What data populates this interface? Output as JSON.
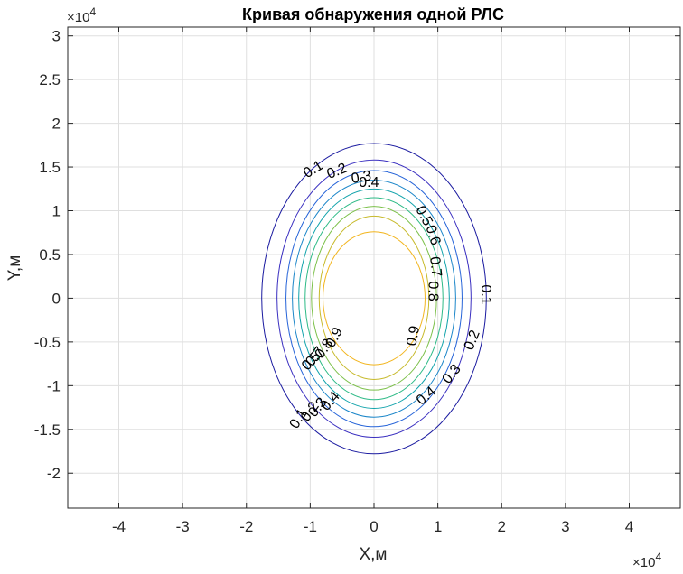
{
  "chart_data": {
    "type": "contour",
    "title": "Кривая обнаружения одной РЛС",
    "xlabel": "X,м",
    "ylabel": "Y,м",
    "x_multiplier": "×10",
    "x_multiplier_exp": "4",
    "y_multiplier": "×10",
    "y_multiplier_exp": "4",
    "xlim": [
      -4.8,
      4.8
    ],
    "ylim": [
      -2.4,
      3.1
    ],
    "x_ticks": [
      -4,
      -3,
      -2,
      -1,
      0,
      1,
      2,
      3,
      4
    ],
    "x_tick_labels": [
      "-4",
      "-3",
      "-2",
      "-1",
      "0",
      "1",
      "2",
      "3",
      "4"
    ],
    "y_ticks": [
      -2,
      -1.5,
      -1,
      -0.5,
      0,
      0.5,
      1,
      1.5,
      2,
      2.5,
      3
    ],
    "y_tick_labels": [
      "-2",
      "-1.5",
      "-1",
      "-0.5",
      "0",
      "0.5",
      "1",
      "1.5",
      "2",
      "2.5",
      "3"
    ],
    "grid": true,
    "levels": [
      {
        "level": 0.1,
        "label": "0.1",
        "color": "#1a1aa0",
        "rx": 1.76,
        "ry_top": 1.77,
        "ry_bot": 1.78
      },
      {
        "level": 0.2,
        "label": "0.2",
        "color": "#3a2fc0",
        "rx": 1.52,
        "ry_top": 1.58,
        "ry_bot": 1.59
      },
      {
        "level": 0.3,
        "label": "0.3",
        "color": "#2563d8",
        "rx": 1.38,
        "ry_top": 1.46,
        "ry_bot": 1.47
      },
      {
        "level": 0.4,
        "label": "0.4",
        "color": "#1b86c9",
        "rx": 1.28,
        "ry_top": 1.35,
        "ry_bot": 1.36
      },
      {
        "level": 0.5,
        "label": "0.5",
        "color": "#11a3ab",
        "rx": 1.18,
        "ry_top": 1.25,
        "ry_bot": 1.26
      },
      {
        "level": 0.6,
        "label": "0.6",
        "color": "#2dba86",
        "rx": 1.08,
        "ry_top": 1.15,
        "ry_bot": 1.16
      },
      {
        "level": 0.7,
        "label": "0.7",
        "color": "#7cc04a",
        "rx": 0.98,
        "ry_top": 1.05,
        "ry_bot": 1.05
      },
      {
        "level": 0.8,
        "label": "0.8",
        "color": "#c7ba2c",
        "rx": 0.86,
        "ry_top": 0.94,
        "ry_bot": 0.93
      },
      {
        "level": 0.9,
        "label": "0.9",
        "color": "#f2b51e",
        "rx": 0.8,
        "ry_top": 0.76,
        "ry_bot": 0.76
      }
    ],
    "contour_labels": [
      {
        "text": "0.1",
        "x": -0.95,
        "y": 1.47,
        "rot": -32
      },
      {
        "text": "0.2",
        "x": -0.58,
        "y": 1.45,
        "rot": -22
      },
      {
        "text": "0.3",
        "x": -0.2,
        "y": 1.38,
        "rot": -10
      },
      {
        "text": "0.4",
        "x": -0.08,
        "y": 1.32,
        "rot": 0
      },
      {
        "text": "0.5",
        "x": 0.78,
        "y": 0.94,
        "rot": 62
      },
      {
        "text": "0.6",
        "x": 0.92,
        "y": 0.72,
        "rot": 72
      },
      {
        "text": "0.7",
        "x": 0.96,
        "y": 0.36,
        "rot": 84
      },
      {
        "text": "0.8",
        "x": 0.92,
        "y": 0.08,
        "rot": 90
      },
      {
        "text": "0.9",
        "x": 0.62,
        "y": -0.43,
        "rot": -80
      },
      {
        "text": "0.1",
        "x": 1.75,
        "y": 0.04,
        "rot": 90
      },
      {
        "text": "0.2",
        "x": 1.54,
        "y": -0.48,
        "rot": -68
      },
      {
        "text": "0.3",
        "x": 1.22,
        "y": -0.87,
        "rot": -50
      },
      {
        "text": "0.4",
        "x": 0.82,
        "y": -1.12,
        "rot": -40
      },
      {
        "text": "0.9",
        "x": -0.62,
        "y": -0.45,
        "rot": -62
      },
      {
        "text": "0.8",
        "x": -0.78,
        "y": -0.58,
        "rot": -55
      },
      {
        "text": "0.7",
        "x": -0.92,
        "y": -0.67,
        "rot": -50
      },
      {
        "text": "0.5",
        "x": -0.98,
        "y": -0.72,
        "rot": -45
      },
      {
        "text": "0.4",
        "x": -0.68,
        "y": -1.18,
        "rot": -48
      },
      {
        "text": "0.3",
        "x": -0.88,
        "y": -1.25,
        "rot": -52
      },
      {
        "text": "0.2",
        "x": -1.0,
        "y": -1.3,
        "rot": -55
      },
      {
        "text": "0.1",
        "x": -1.18,
        "y": -1.38,
        "rot": -58
      }
    ]
  }
}
